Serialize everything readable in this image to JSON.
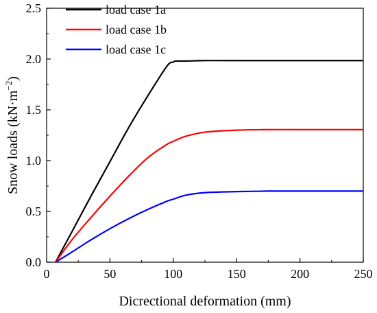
{
  "chart_data": {
    "type": "line",
    "xlabel": "Dicrectional deformation (mm)",
    "ylabel": "Snow loads (kN·m",
    "ylabel_exp": "−2",
    "ylabel_close": ")",
    "xlim": [
      0,
      250
    ],
    "ylim": [
      0,
      2.5
    ],
    "xticks": [
      "0",
      "50",
      "100",
      "150",
      "200",
      "250"
    ],
    "yticks": [
      "0.0",
      "0.5",
      "1.0",
      "1.5",
      "2.0",
      "2.5"
    ],
    "grid": false,
    "legend_position": "top-left",
    "series": [
      {
        "name": "load case 1a",
        "color": "#000000",
        "x": [
          7,
          20,
          35,
          50,
          65,
          80,
          95,
          100,
          102,
          110,
          125,
          150,
          200,
          250
        ],
        "y": [
          0,
          0.3,
          0.65,
          0.99,
          1.33,
          1.64,
          1.93,
          1.97,
          1.98,
          1.98,
          1.985,
          1.985,
          1.985,
          1.985
        ]
      },
      {
        "name": "load case 1b",
        "color": "#ff0000",
        "x": [
          7,
          20,
          35,
          50,
          65,
          80,
          95,
          100,
          110,
          125,
          150,
          175,
          200,
          250
        ],
        "y": [
          0,
          0.22,
          0.44,
          0.65,
          0.85,
          1.03,
          1.16,
          1.19,
          1.24,
          1.28,
          1.3,
          1.305,
          1.305,
          1.305
        ]
      },
      {
        "name": "load case 1c",
        "color": "#0000ff",
        "x": [
          7,
          20,
          35,
          50,
          65,
          80,
          95,
          100,
          110,
          125,
          150,
          175,
          200,
          250
        ],
        "y": [
          0,
          0.1,
          0.22,
          0.33,
          0.43,
          0.52,
          0.6,
          0.62,
          0.66,
          0.685,
          0.695,
          0.7,
          0.7,
          0.7
        ]
      }
    ]
  }
}
